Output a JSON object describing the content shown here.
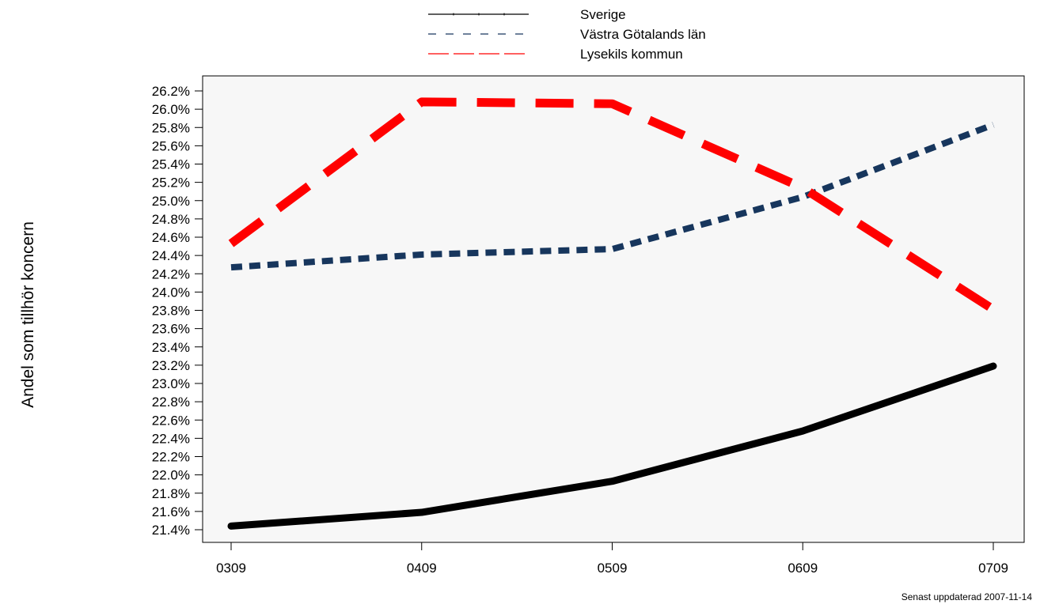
{
  "chart_data": {
    "type": "line",
    "ylabel": "Andel som tillhör koncern",
    "xlabel": "",
    "categories": [
      "0309",
      "0409",
      "0509",
      "0609",
      "0709"
    ],
    "y_ticks": [
      "21.4%",
      "21.6%",
      "21.8%",
      "22.0%",
      "22.2%",
      "22.4%",
      "22.6%",
      "22.8%",
      "23.0%",
      "23.2%",
      "23.4%",
      "23.6%",
      "23.8%",
      "24.0%",
      "24.2%",
      "24.4%",
      "24.6%",
      "24.8%",
      "25.0%",
      "25.2%",
      "25.4%",
      "25.6%",
      "25.8%",
      "26.0%",
      "26.2%"
    ],
    "ylim": [
      21.4,
      26.2
    ],
    "grid": false,
    "legend_position": "top",
    "series": [
      {
        "name": "Sverige",
        "values": [
          21.44,
          21.59,
          21.93,
          22.48,
          23.19
        ],
        "color": "#000000",
        "style": "solid"
      },
      {
        "name": "Västra Götalands län",
        "values": [
          24.27,
          24.41,
          24.47,
          25.04,
          25.83
        ],
        "color": "#17365d",
        "style": "dotted"
      },
      {
        "name": "Lysekils kommun",
        "values": [
          24.53,
          26.08,
          26.06,
          25.14,
          23.81
        ],
        "color": "#ff0000",
        "style": "dashed"
      }
    ]
  },
  "footnote": "Senast uppdaterad 2007-11-14",
  "colors": {
    "plot_background": "#f7f7f7"
  }
}
